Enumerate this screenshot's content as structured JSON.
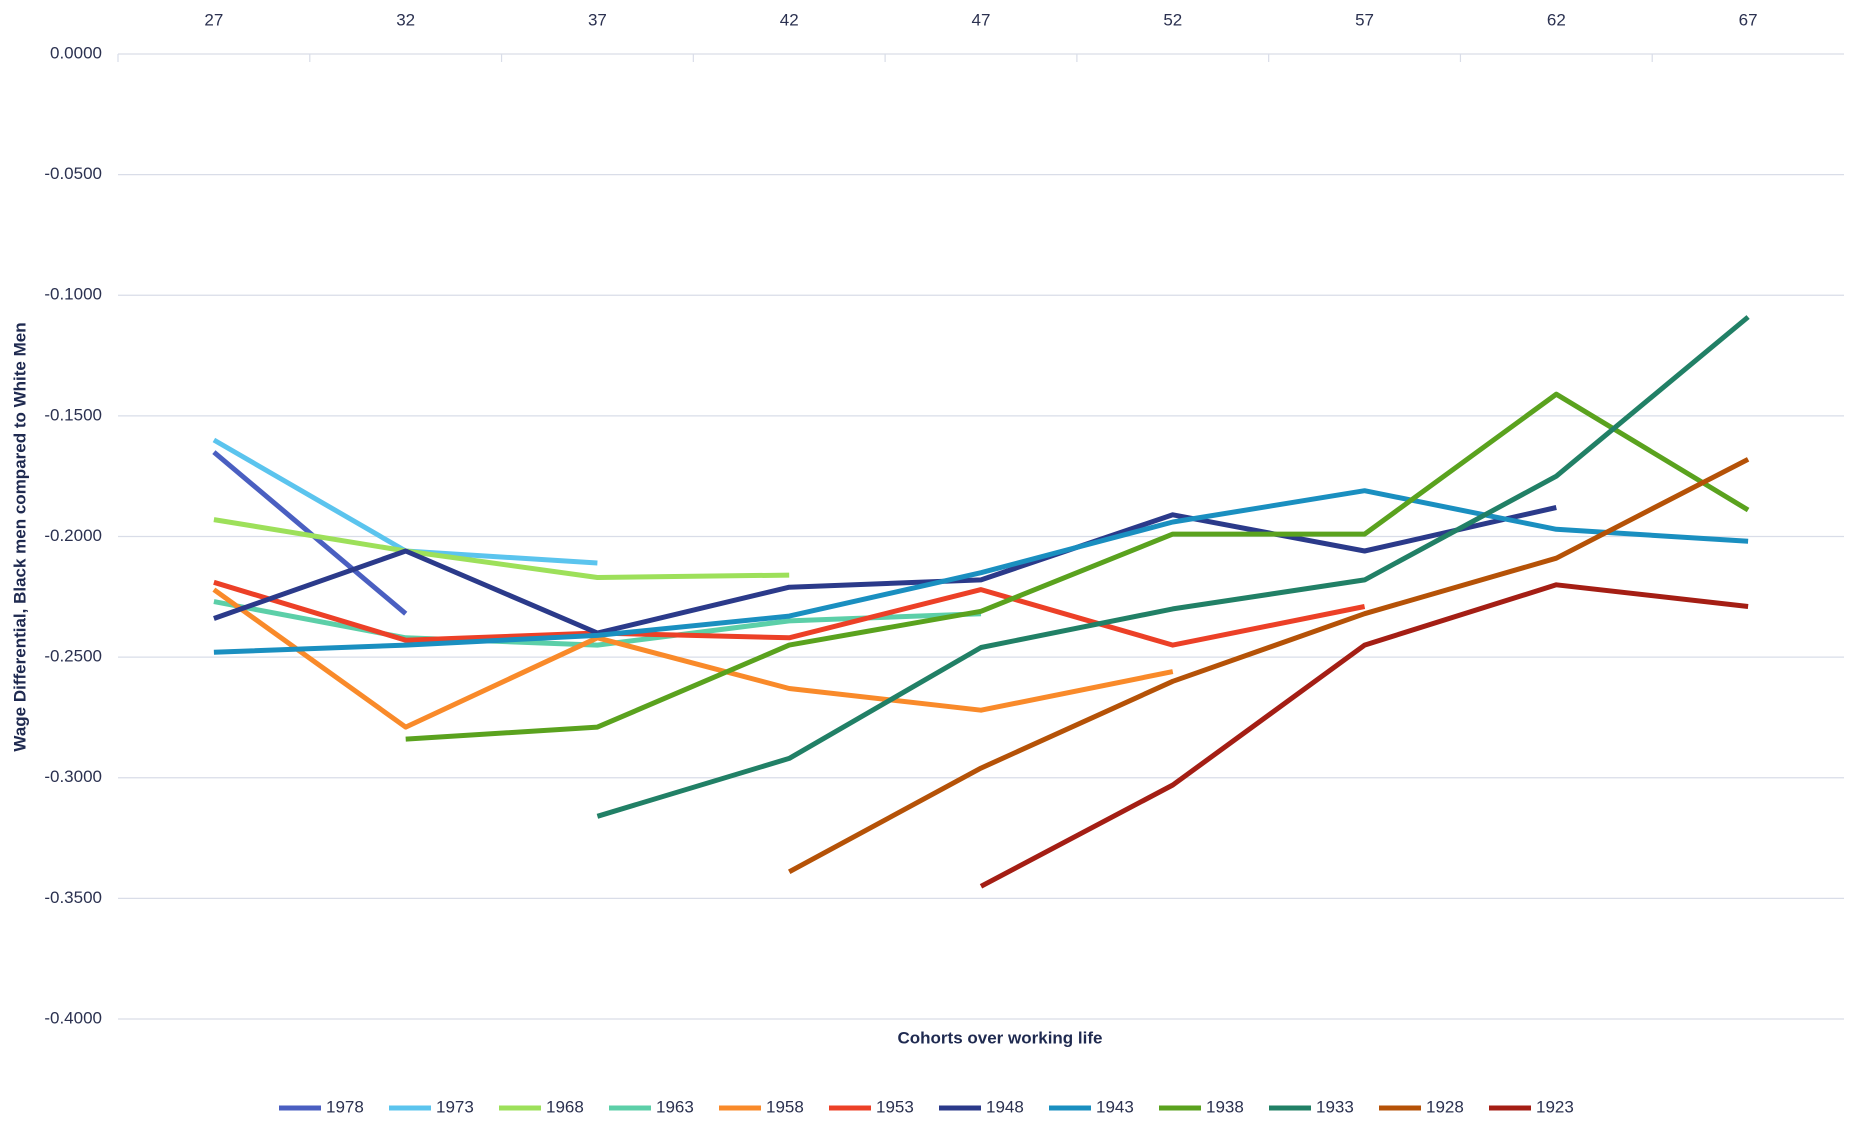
{
  "chart_data": {
    "type": "line",
    "x_label": "Cohorts over working life",
    "y_label": "Wage Differential, Black men compared to White Men",
    "categories": [
      "27",
      "32",
      "37",
      "42",
      "47",
      "52",
      "57",
      "62",
      "67"
    ],
    "ylim": [
      -0.4,
      0
    ],
    "yticks": [
      {
        "value": 0,
        "label": "0.0000"
      },
      {
        "value": -0.05,
        "label": "-0.0500"
      },
      {
        "value": -0.1,
        "label": "-0.1000"
      },
      {
        "value": -0.15,
        "label": "-0.1500"
      },
      {
        "value": -0.2,
        "label": "-0.2000"
      },
      {
        "value": -0.25,
        "label": "-0.2500"
      },
      {
        "value": -0.3,
        "label": "-0.3000"
      },
      {
        "value": -0.35,
        "label": "-0.3500"
      },
      {
        "value": -0.4,
        "label": "-0.4000"
      }
    ],
    "grid": true,
    "legend": "bottom",
    "series": [
      {
        "name": "1978",
        "color": "#4a5fc1",
        "values": [
          -0.165,
          -0.232,
          null,
          null,
          null,
          null,
          null,
          null,
          null
        ]
      },
      {
        "name": "1973",
        "color": "#5bc4ee",
        "values": [
          -0.16,
          -0.206,
          -0.211,
          null,
          null,
          null,
          null,
          null,
          null
        ]
      },
      {
        "name": "1968",
        "color": "#9de05a",
        "values": [
          -0.193,
          -0.206,
          -0.217,
          -0.216,
          null,
          null,
          null,
          null,
          null
        ]
      },
      {
        "name": "1963",
        "color": "#5ccfa8",
        "values": [
          -0.227,
          -0.242,
          -0.245,
          -0.235,
          -0.232,
          null,
          null,
          null,
          null
        ]
      },
      {
        "name": "1958",
        "color": "#f98a2a",
        "values": [
          -0.222,
          -0.279,
          -0.242,
          -0.263,
          -0.272,
          -0.256,
          null,
          null,
          null
        ]
      },
      {
        "name": "1953",
        "color": "#ec4027",
        "values": [
          -0.219,
          -0.243,
          -0.24,
          -0.242,
          -0.222,
          -0.245,
          -0.229,
          null,
          null
        ]
      },
      {
        "name": "1948",
        "color": "#2b3a8a",
        "values": [
          -0.234,
          -0.206,
          -0.24,
          -0.221,
          -0.218,
          -0.191,
          -0.206,
          -0.188,
          null
        ]
      },
      {
        "name": "1943",
        "color": "#1a8fc0",
        "values": [
          -0.248,
          -0.245,
          -0.241,
          -0.233,
          -0.215,
          -0.194,
          -0.181,
          -0.197,
          -0.202
        ]
      },
      {
        "name": "1938",
        "color": "#5aa21e",
        "values": [
          null,
          -0.284,
          -0.279,
          -0.245,
          -0.231,
          -0.199,
          -0.199,
          -0.141,
          -0.189
        ]
      },
      {
        "name": "1933",
        "color": "#218066",
        "values": [
          null,
          null,
          -0.316,
          -0.292,
          -0.246,
          -0.23,
          -0.218,
          -0.175,
          -0.109
        ]
      },
      {
        "name": "1928",
        "color": "#b55207",
        "values": [
          null,
          null,
          null,
          -0.339,
          -0.296,
          -0.26,
          -0.232,
          -0.209,
          -0.168
        ]
      },
      {
        "name": "1923",
        "color": "#a41e14",
        "values": [
          null,
          null,
          null,
          null,
          -0.345,
          -0.303,
          -0.245,
          -0.22,
          -0.229
        ]
      }
    ]
  }
}
